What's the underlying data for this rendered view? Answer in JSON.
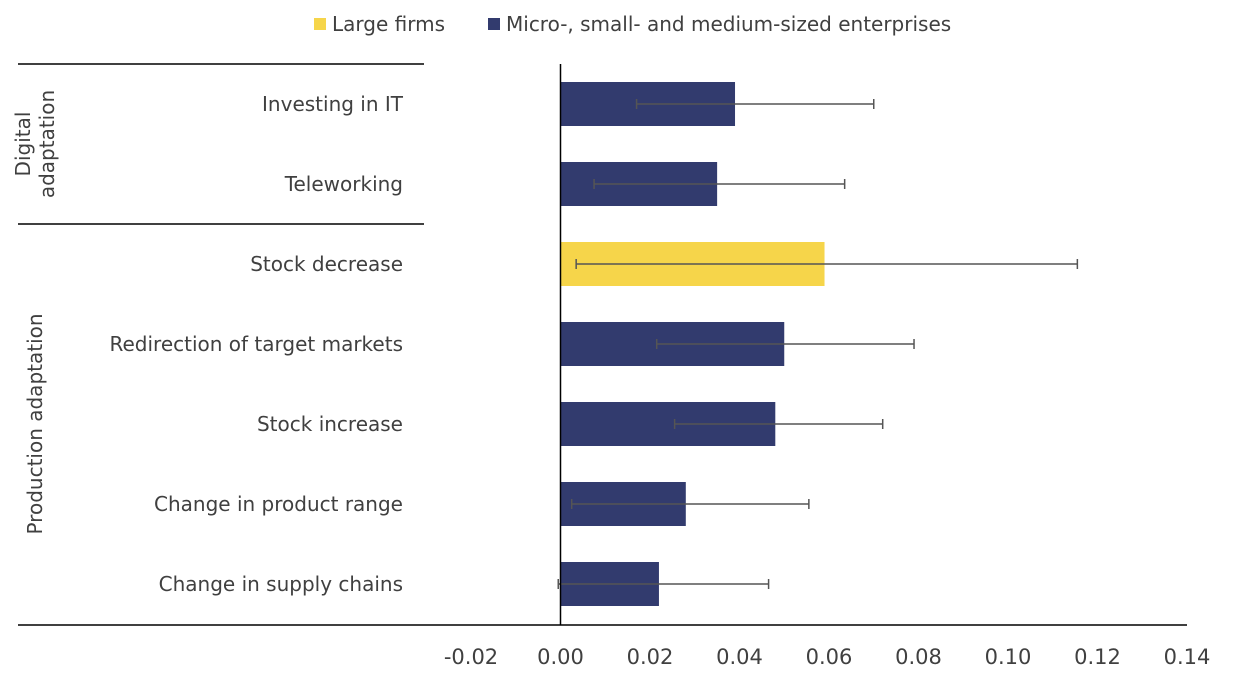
{
  "colors": {
    "large": "#F6D54A",
    "sme": "#323B6E",
    "error_bar": "#555555",
    "text": "#404040",
    "rule": "#000000"
  },
  "legend": [
    {
      "key": "large",
      "label": "Large firms"
    },
    {
      "key": "sme",
      "label": "Micro-, small- and medium-sized enterprises"
    }
  ],
  "chart_data": {
    "type": "bar",
    "orientation": "horizontal",
    "groups": [
      {
        "label": "Digital adaptation",
        "categories": [
          "Investing in IT",
          "Teleworking"
        ]
      },
      {
        "label": "Production adaptation",
        "categories": [
          "Stock decrease",
          "Redirection of target markets",
          "Stock increase",
          "Change in product range",
          "Change in supply chains"
        ]
      }
    ],
    "categories": [
      "Investing in IT",
      "Teleworking",
      "Stock decrease",
      "Redirection of target markets",
      "Stock increase",
      "Change in product range",
      "Change in supply chains"
    ],
    "values": [
      0.039,
      0.035,
      0.059,
      0.05,
      0.048,
      0.028,
      0.022
    ],
    "series_key": [
      "sme",
      "sme",
      "large",
      "sme",
      "sme",
      "sme",
      "sme"
    ],
    "error_low": [
      0.017,
      0.0075,
      0.0035,
      0.0215,
      0.0255,
      0.0025,
      -0.0005
    ],
    "error_high": [
      0.07,
      0.0635,
      0.1155,
      0.079,
      0.072,
      0.0555,
      0.0465
    ],
    "xlim": [
      -0.02,
      0.14
    ],
    "xticks": [
      "-0.02",
      "0.00",
      "0.02",
      "0.04",
      "0.06",
      "0.08",
      "0.10",
      "0.12",
      "0.14"
    ],
    "grid": false,
    "legend_position": "top"
  }
}
